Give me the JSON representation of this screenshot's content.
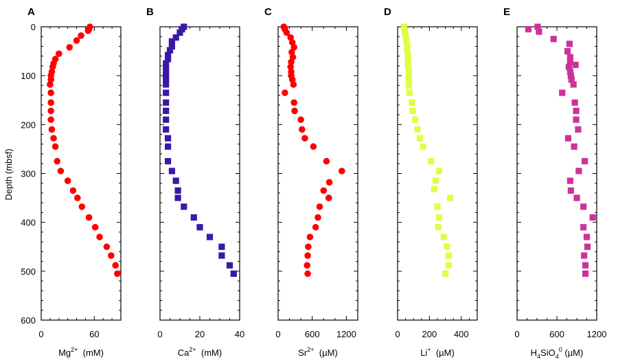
{
  "y_axis": {
    "label": "Depth (mbsf)",
    "ticks": [
      0,
      100,
      200,
      300,
      400,
      500,
      600
    ],
    "minor_step": 20,
    "range": [
      0,
      600
    ],
    "inverted": true
  },
  "chart_data": [
    {
      "panel": "A",
      "type": "scatter",
      "marker": "circle",
      "color": "#ff0000",
      "xlabel": "Mg2+ (mM)",
      "xlabel_parts": {
        "base": "Mg",
        "sup": "2+",
        "unit": "(mM)"
      },
      "ylabel": "Depth (mbsf)",
      "xlim": [
        0,
        90
      ],
      "ylim": [
        600,
        0
      ],
      "xticks": [
        0,
        60
      ],
      "xminor_step": 10,
      "points": [
        [
          55,
          0
        ],
        [
          54,
          5
        ],
        [
          53,
          8
        ],
        [
          45,
          18
        ],
        [
          40,
          28
        ],
        [
          32,
          42
        ],
        [
          20,
          55
        ],
        [
          16,
          66
        ],
        [
          14,
          75
        ],
        [
          13,
          82
        ],
        [
          12,
          92
        ],
        [
          11,
          100
        ],
        [
          11,
          108
        ],
        [
          10,
          118
        ],
        [
          11,
          135
        ],
        [
          11,
          155
        ],
        [
          11,
          172
        ],
        [
          11,
          190
        ],
        [
          12,
          210
        ],
        [
          14,
          228
        ],
        [
          16,
          245
        ],
        [
          18,
          275
        ],
        [
          22,
          295
        ],
        [
          30,
          315
        ],
        [
          36,
          335
        ],
        [
          41,
          350
        ],
        [
          46,
          368
        ],
        [
          54,
          390
        ],
        [
          61,
          410
        ],
        [
          66,
          430
        ],
        [
          74,
          450
        ],
        [
          79,
          468
        ],
        [
          84,
          488
        ],
        [
          86,
          505
        ]
      ]
    },
    {
      "panel": "B",
      "type": "scatter",
      "marker": "square",
      "color": "#3a18a8",
      "xlabel": "Ca2+ (mM)",
      "xlabel_parts": {
        "base": "Ca",
        "sup": "2+",
        "unit": "(mM)"
      },
      "ylabel": "",
      "xlim": [
        0,
        40
      ],
      "ylim": [
        600,
        0
      ],
      "xticks": [
        0,
        20,
        40
      ],
      "xminor_step": 5,
      "points": [
        [
          12,
          0
        ],
        [
          11,
          5
        ],
        [
          10,
          12
        ],
        [
          8,
          22
        ],
        [
          6,
          30
        ],
        [
          6,
          40
        ],
        [
          5,
          48
        ],
        [
          4,
          58
        ],
        [
          4,
          66
        ],
        [
          3,
          75
        ],
        [
          3,
          82
        ],
        [
          3,
          92
        ],
        [
          3,
          100
        ],
        [
          3,
          108
        ],
        [
          3,
          118
        ],
        [
          3,
          135
        ],
        [
          3,
          155
        ],
        [
          3,
          172
        ],
        [
          3,
          190
        ],
        [
          3,
          210
        ],
        [
          4,
          228
        ],
        [
          4,
          245
        ],
        [
          4,
          275
        ],
        [
          6,
          295
        ],
        [
          8,
          315
        ],
        [
          9,
          335
        ],
        [
          9,
          350
        ],
        [
          12,
          368
        ],
        [
          17,
          390
        ],
        [
          20,
          410
        ],
        [
          25,
          430
        ],
        [
          31,
          450
        ],
        [
          31,
          468
        ],
        [
          35,
          488
        ],
        [
          37,
          505
        ]
      ]
    },
    {
      "panel": "C",
      "type": "scatter",
      "marker": "circle",
      "color": "#ff0000",
      "xlabel": "Sr2+ (µM)",
      "xlabel_parts": {
        "base": "Sr",
        "sup": "2+",
        "unit": "(µM)"
      },
      "ylabel": "",
      "xlim": [
        0,
        1400
      ],
      "ylim": [
        600,
        0
      ],
      "xticks": [
        0,
        600,
        1200
      ],
      "xminor_step": 200,
      "points": [
        [
          100,
          0
        ],
        [
          120,
          5
        ],
        [
          150,
          12
        ],
        [
          220,
          22
        ],
        [
          250,
          32
        ],
        [
          280,
          42
        ],
        [
          240,
          52
        ],
        [
          260,
          62
        ],
        [
          230,
          72
        ],
        [
          220,
          82
        ],
        [
          230,
          92
        ],
        [
          230,
          100
        ],
        [
          250,
          108
        ],
        [
          270,
          118
        ],
        [
          120,
          135
        ],
        [
          280,
          155
        ],
        [
          290,
          172
        ],
        [
          400,
          190
        ],
        [
          420,
          210
        ],
        [
          470,
          228
        ],
        [
          620,
          245
        ],
        [
          850,
          275
        ],
        [
          1120,
          295
        ],
        [
          900,
          318
        ],
        [
          800,
          335
        ],
        [
          890,
          350
        ],
        [
          730,
          368
        ],
        [
          700,
          390
        ],
        [
          660,
          410
        ],
        [
          560,
          430
        ],
        [
          530,
          450
        ],
        [
          520,
          468
        ],
        [
          510,
          488
        ],
        [
          520,
          505
        ]
      ]
    },
    {
      "panel": "D",
      "type": "scatter",
      "marker": "square",
      "color": "#ddff44",
      "xlabel": "Li+ (µM)",
      "xlabel_parts": {
        "base": "Li",
        "sup": "+",
        "unit": "(µM)"
      },
      "ylabel": "",
      "xlim": [
        0,
        500
      ],
      "ylim": [
        600,
        0
      ],
      "xticks": [
        0,
        200,
        400
      ],
      "xminor_step": 50,
      "points": [
        [
          40,
          0
        ],
        [
          45,
          8
        ],
        [
          50,
          18
        ],
        [
          55,
          28
        ],
        [
          60,
          38
        ],
        [
          60,
          48
        ],
        [
          65,
          58
        ],
        [
          65,
          68
        ],
        [
          65,
          78
        ],
        [
          70,
          88
        ],
        [
          70,
          98
        ],
        [
          70,
          108
        ],
        [
          70,
          120
        ],
        [
          75,
          135
        ],
        [
          90,
          155
        ],
        [
          95,
          172
        ],
        [
          110,
          190
        ],
        [
          125,
          210
        ],
        [
          140,
          228
        ],
        [
          160,
          245
        ],
        [
          210,
          275
        ],
        [
          260,
          295
        ],
        [
          240,
          315
        ],
        [
          230,
          332
        ],
        [
          330,
          350
        ],
        [
          250,
          368
        ],
        [
          260,
          390
        ],
        [
          255,
          410
        ],
        [
          290,
          430
        ],
        [
          310,
          450
        ],
        [
          320,
          468
        ],
        [
          320,
          488
        ],
        [
          300,
          505
        ]
      ]
    },
    {
      "panel": "E",
      "type": "scatter",
      "marker": "square",
      "color": "#cc3399",
      "xlabel": "H4SiO4 0 (µM)",
      "xlabel_parts": {
        "base": "H",
        "sub1": "4",
        "mid": "SiO",
        "sub2": "4",
        "sup": "0",
        "unit": "(µM)"
      },
      "ylabel": "",
      "xlim": [
        0,
        1200
      ],
      "ylim": [
        600,
        0
      ],
      "xticks": [
        0,
        600,
        1200
      ],
      "xminor_step": 150,
      "points": [
        [
          310,
          0
        ],
        [
          170,
          5
        ],
        [
          330,
          10
        ],
        [
          550,
          25
        ],
        [
          790,
          35
        ],
        [
          760,
          50
        ],
        [
          800,
          62
        ],
        [
          800,
          72
        ],
        [
          780,
          82
        ],
        [
          880,
          78
        ],
        [
          800,
          92
        ],
        [
          810,
          100
        ],
        [
          820,
          108
        ],
        [
          850,
          118
        ],
        [
          680,
          135
        ],
        [
          870,
          155
        ],
        [
          890,
          172
        ],
        [
          890,
          190
        ],
        [
          920,
          210
        ],
        [
          770,
          228
        ],
        [
          860,
          245
        ],
        [
          1020,
          275
        ],
        [
          930,
          295
        ],
        [
          800,
          315
        ],
        [
          810,
          335
        ],
        [
          900,
          350
        ],
        [
          1000,
          368
        ],
        [
          1140,
          390
        ],
        [
          1000,
          410
        ],
        [
          1050,
          430
        ],
        [
          1060,
          450
        ],
        [
          1010,
          468
        ],
        [
          1030,
          488
        ],
        [
          1030,
          505
        ]
      ]
    }
  ]
}
